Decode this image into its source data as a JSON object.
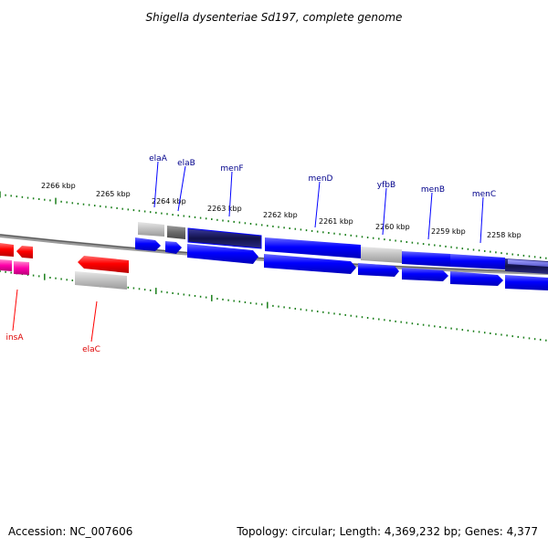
{
  "title": "Shigella dysenteriae Sd197, complete genome",
  "accession": "Accession: NC_007606",
  "summary": "Topology: circular; Length: 4,369,232 bp; Genes: 4,377",
  "colors": {
    "background": "#ffffff",
    "backbone": "#808080",
    "tick": "#1a7f1a",
    "cds_forward": "#0000ff",
    "cds_forward_dark": "#1c1c6e",
    "cds_reverse": "#ff0000",
    "pseudo": "#c0c0c0",
    "pseudo_dark": "#707070",
    "mobile": "#ff00aa",
    "label_forward": "#00008b",
    "label_reverse": "#dd0000"
  },
  "scale_labels": [
    "2266 kbp",
    "2265 kbp",
    "2264 kbp",
    "2263 kbp",
    "2262 kbp",
    "2261 kbp",
    "2260 kbp",
    "2259 kbp",
    "2258 kbp"
  ],
  "gene_labels": {
    "elaA": "elaA",
    "elaB": "elaB",
    "menF": "menF",
    "menD": "menD",
    "yfbB": "yfbB",
    "menB": "menB",
    "menC": "menC",
    "insA": "insA",
    "elaC": "elaC"
  }
}
